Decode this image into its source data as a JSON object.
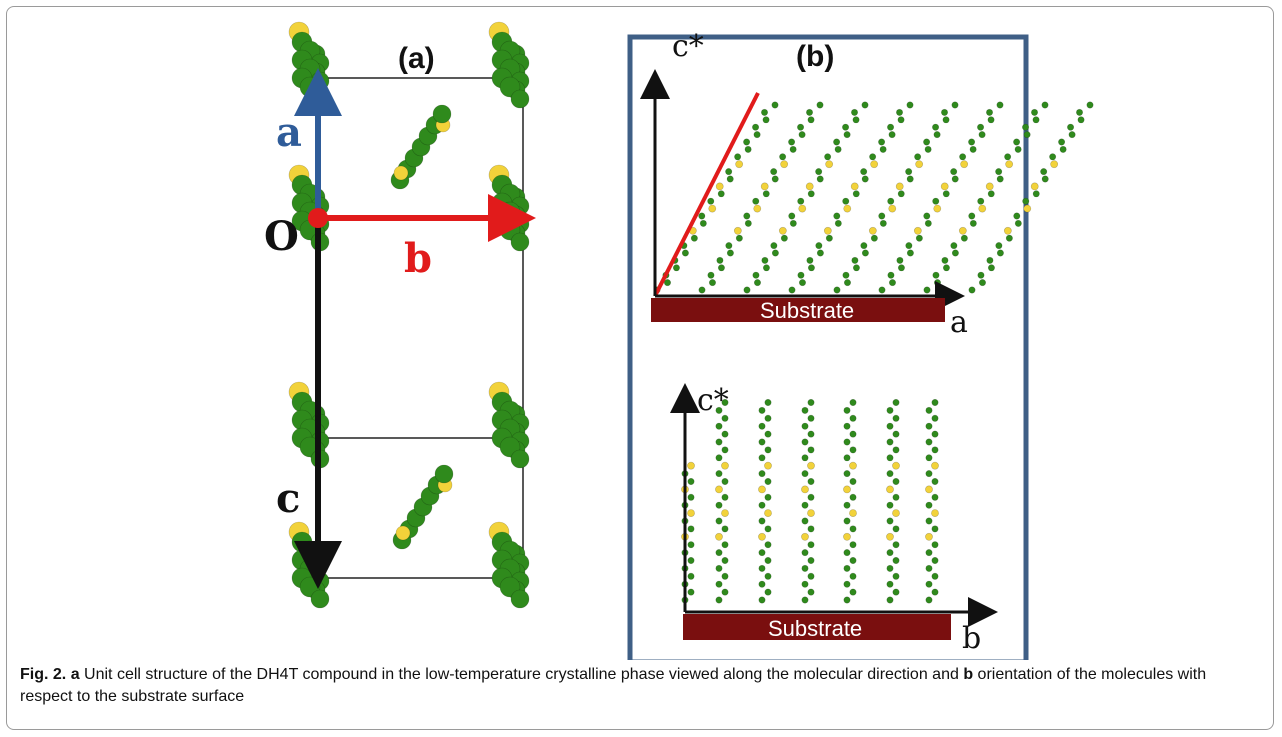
{
  "panel_a": {
    "label": "(a)",
    "axis_a": "a",
    "axis_b": "b",
    "axis_c": "c",
    "origin": "O",
    "colors": {
      "axis_a": "#2f5c99",
      "axis_b": "#e11b1b",
      "axis_c": "#111111",
      "carbon": "#2f8a1c",
      "sulfur": "#f2d23a"
    }
  },
  "panel_b": {
    "label": "(b)",
    "top": {
      "axis_vertical": "c*",
      "axis_horizontal": "a",
      "substrate": "Substrate"
    },
    "bottom": {
      "axis_vertical": "c*",
      "axis_horizontal": "b",
      "substrate": "Substrate"
    },
    "colors": {
      "frame": "#3f5f86",
      "substrate": "#7a0f0f",
      "tilt_line": "#e11b1b"
    }
  },
  "caption": {
    "fig_label": "Fig. 2.",
    "part_a_letter": "a",
    "part_a_text": " Unit cell structure of the DH4T compound in the low-temperature crystalline phase viewed along the molecular direction and ",
    "part_b_letter": "b",
    "part_b_text": " orientation of the molecules with respect to the substrate surface"
  }
}
